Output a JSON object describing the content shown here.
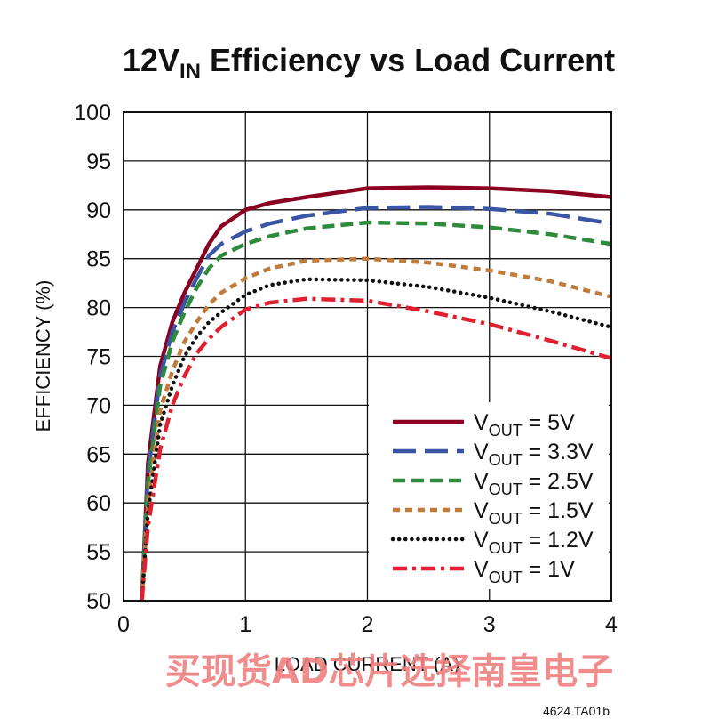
{
  "title": {
    "prefix": "12V",
    "sub": "IN",
    "rest": " Efficiency vs Load Current"
  },
  "chart_data": {
    "type": "line",
    "xlabel": "LOAD CURRENT (A)",
    "ylabel": "EFFICIENCY (%)",
    "xlim": [
      0,
      4
    ],
    "ylim": [
      50,
      100
    ],
    "xticks": [
      0,
      1,
      2,
      3,
      4
    ],
    "yticks": [
      50,
      55,
      60,
      65,
      70,
      75,
      80,
      85,
      90,
      95,
      100
    ],
    "grid": "vertical lines at 1, 2, 3; horizontal lines every 5",
    "legend_position": "lower-right",
    "series": [
      {
        "name_prefix": "V",
        "name_sub": "OUT",
        "name_value": " = 5V",
        "color": "#8b0021",
        "dash": "solid",
        "x": [
          0.15,
          0.2,
          0.3,
          0.4,
          0.5,
          0.6,
          0.7,
          0.8,
          1.0,
          1.2,
          1.5,
          2.0,
          2.5,
          3.0,
          3.5,
          4.0
        ],
        "y": [
          50,
          64,
          74,
          78.5,
          81.5,
          84,
          86.5,
          88.3,
          90,
          90.7,
          91.3,
          92.2,
          92.3,
          92.2,
          91.9,
          91.3
        ]
      },
      {
        "name_prefix": "V",
        "name_sub": "OUT",
        "name_value": " = 3.3V",
        "color": "#3a55a4",
        "dash": "long",
        "x": [
          0.15,
          0.2,
          0.3,
          0.4,
          0.5,
          0.6,
          0.7,
          0.8,
          1.0,
          1.2,
          1.5,
          2.0,
          2.5,
          3.0,
          3.5,
          4.0
        ],
        "y": [
          50,
          63,
          73,
          77.5,
          80.5,
          83,
          85.3,
          86.5,
          87.8,
          88.6,
          89.4,
          90.2,
          90.3,
          90.1,
          89.6,
          88.6
        ]
      },
      {
        "name_prefix": "V",
        "name_sub": "OUT",
        "name_value": " = 2.5V",
        "color": "#2e8b3c",
        "dash": "medium",
        "x": [
          0.15,
          0.2,
          0.3,
          0.4,
          0.5,
          0.6,
          0.7,
          0.8,
          1.0,
          1.2,
          1.5,
          2.0,
          2.5,
          3.0,
          3.5,
          4.0
        ],
        "y": [
          50,
          62,
          72,
          76.5,
          79.5,
          82,
          84,
          85.3,
          86.5,
          87.3,
          88.1,
          88.7,
          88.6,
          88.2,
          87.5,
          86.5
        ]
      },
      {
        "name_prefix": "V",
        "name_sub": "OUT",
        "name_value": " = 1.5V",
        "color": "#c07a3a",
        "dash": "short",
        "x": [
          0.15,
          0.2,
          0.3,
          0.4,
          0.5,
          0.6,
          0.7,
          0.8,
          1.0,
          1.2,
          1.5,
          2.0,
          2.5,
          3.0,
          3.5,
          4.0
        ],
        "y": [
          50,
          60,
          69.5,
          73.5,
          76.5,
          78.5,
          80.3,
          81.5,
          83,
          84,
          84.8,
          85,
          84.6,
          83.8,
          82.7,
          81.1
        ]
      },
      {
        "name_prefix": "V",
        "name_sub": "OUT",
        "name_value": " = 1.2V",
        "color": "#111111",
        "dash": "dotted",
        "x": [
          0.15,
          0.2,
          0.3,
          0.4,
          0.5,
          0.6,
          0.7,
          0.8,
          1.0,
          1.2,
          1.5,
          2.0,
          2.5,
          3.0,
          3.5,
          4.0
        ],
        "y": [
          50,
          59,
          68,
          72,
          75,
          77,
          78.5,
          79.5,
          81.3,
          82.3,
          82.9,
          82.8,
          82.1,
          81,
          79.6,
          78
        ]
      },
      {
        "name_prefix": "V",
        "name_sub": "OUT",
        "name_value": " = 1V",
        "color": "#e0202e",
        "dash": "dashdot",
        "x": [
          0.15,
          0.2,
          0.3,
          0.4,
          0.5,
          0.6,
          0.7,
          0.8,
          1.0,
          1.2,
          1.5,
          2.0,
          2.5,
          3.0,
          3.5,
          4.0
        ],
        "y": [
          50,
          57.5,
          65.5,
          70,
          73,
          75.3,
          76.8,
          78,
          79.8,
          80.5,
          80.9,
          80.7,
          79.6,
          78.3,
          76.6,
          74.8
        ]
      }
    ]
  },
  "watermark": "买现货AD芯片选择南皇电子",
  "figure_code": "4624 TA01b"
}
